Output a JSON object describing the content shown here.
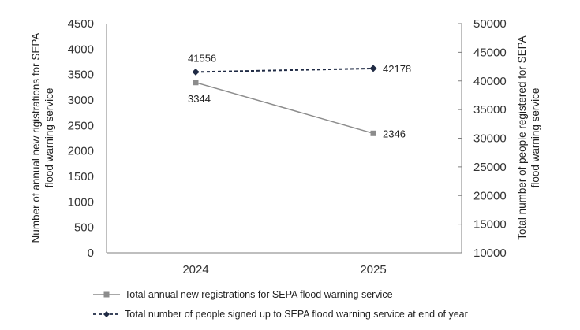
{
  "chart_data": {
    "type": "line",
    "categories": [
      "2024",
      "2025"
    ],
    "y_left": {
      "label": "Number of annual new rigistrations for SEPA flood warning service",
      "label_lines": [
        "Number of annual new rigistrations for SEPA",
        "flood warning service"
      ],
      "min": 0,
      "max": 4500,
      "step": 500
    },
    "y_right": {
      "label": "Total number of people registered for SEPA flood warning service",
      "label_lines": [
        "Total number of people registered for SEPA",
        "flood warning service"
      ],
      "min": 10000,
      "max": 50000,
      "step": 5000
    },
    "series": [
      {
        "name": "Total annual new registrations for SEPA flood warning service",
        "axis": "left",
        "values": [
          3344,
          2346
        ],
        "labels": [
          "3344",
          "2346"
        ],
        "color": "#8c8c8c",
        "line_style": "solid",
        "marker": "square"
      },
      {
        "name": "Total number of people signed up to SEPA flood warning service at end of year",
        "axis": "right",
        "values": [
          41556,
          42178
        ],
        "labels": [
          "41556",
          "42178"
        ],
        "color": "#1f2a44",
        "line_style": "dashed",
        "marker": "diamond"
      }
    ],
    "legend_position": "bottom",
    "grid": false
  }
}
